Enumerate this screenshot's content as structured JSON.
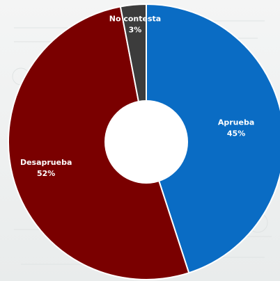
{
  "chart_data": {
    "type": "pie",
    "donut": true,
    "slices": [
      {
        "label": "Aprueba",
        "value": 45,
        "display": "45%",
        "color": "#0a6cc4"
      },
      {
        "label": "Desaprueba",
        "value": 52,
        "display": "52%",
        "color": "#7a0000"
      },
      {
        "label": "No contesta",
        "value": 3,
        "display": "3%",
        "color": "#3c3c3c"
      }
    ],
    "start_angle_deg": 0,
    "direction": "clockwise",
    "slice_border_color": "#ffffff",
    "hole_color": "#ffffff"
  }
}
